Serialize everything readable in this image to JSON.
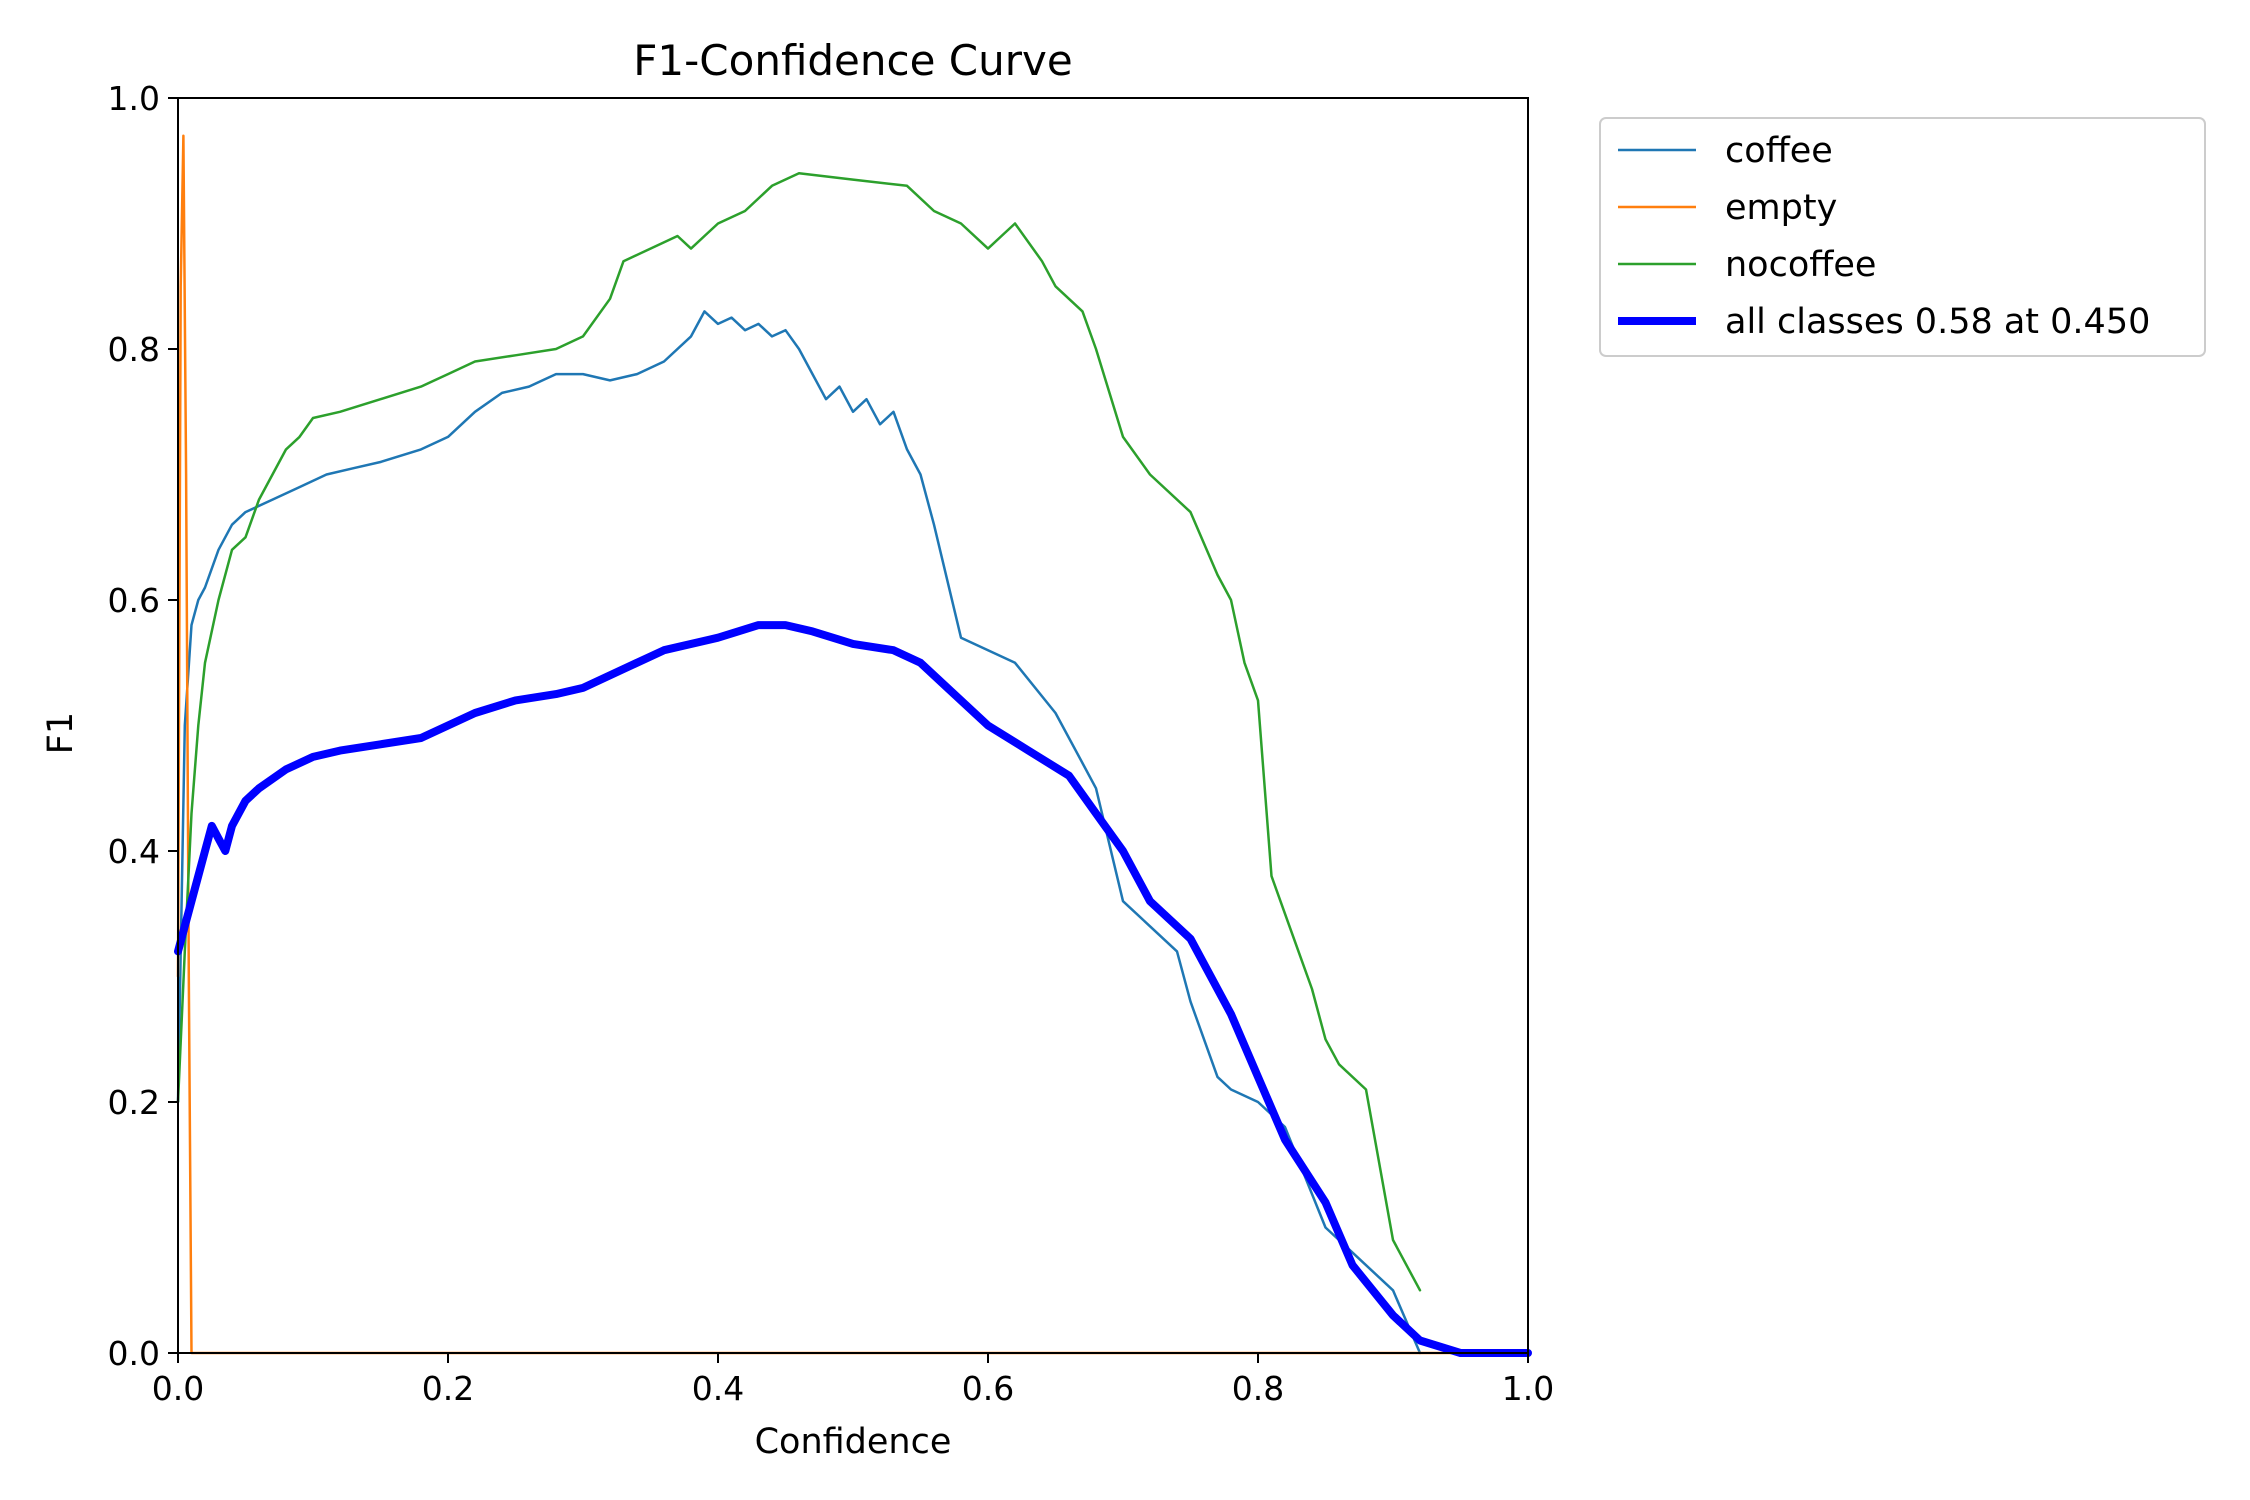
{
  "chart_data": {
    "type": "line",
    "title": "F1-Confidence Curve",
    "xlabel": "Confidence",
    "ylabel": "F1",
    "xlim": [
      0,
      1
    ],
    "ylim": [
      0,
      1
    ],
    "xticks": [
      "0.0",
      "0.2",
      "0.4",
      "0.6",
      "0.8",
      "1.0"
    ],
    "yticks": [
      "0.0",
      "0.2",
      "0.4",
      "0.6",
      "0.8",
      "1.0"
    ],
    "grid": false,
    "legend_position": "outside top-right",
    "series": [
      {
        "name": "coffee",
        "color": "#1f77b4",
        "x": [
          0.0,
          0.005,
          0.01,
          0.015,
          0.02,
          0.03,
          0.04,
          0.05,
          0.07,
          0.09,
          0.11,
          0.13,
          0.15,
          0.18,
          0.2,
          0.22,
          0.24,
          0.26,
          0.28,
          0.3,
          0.32,
          0.34,
          0.36,
          0.38,
          0.39,
          0.4,
          0.41,
          0.42,
          0.43,
          0.44,
          0.45,
          0.46,
          0.47,
          0.48,
          0.49,
          0.5,
          0.51,
          0.52,
          0.53,
          0.54,
          0.55,
          0.56,
          0.58,
          0.6,
          0.62,
          0.65,
          0.67,
          0.68,
          0.7,
          0.72,
          0.74,
          0.75,
          0.77,
          0.78,
          0.8,
          0.82,
          0.85,
          0.87,
          0.9,
          0.92
        ],
        "y": [
          0.2,
          0.5,
          0.58,
          0.6,
          0.61,
          0.64,
          0.66,
          0.67,
          0.68,
          0.69,
          0.7,
          0.705,
          0.71,
          0.72,
          0.73,
          0.75,
          0.765,
          0.77,
          0.78,
          0.78,
          0.775,
          0.78,
          0.79,
          0.81,
          0.83,
          0.82,
          0.825,
          0.815,
          0.82,
          0.81,
          0.815,
          0.8,
          0.78,
          0.76,
          0.77,
          0.75,
          0.76,
          0.74,
          0.75,
          0.72,
          0.7,
          0.66,
          0.57,
          0.56,
          0.55,
          0.51,
          0.47,
          0.45,
          0.36,
          0.34,
          0.32,
          0.28,
          0.22,
          0.21,
          0.2,
          0.18,
          0.1,
          0.08,
          0.05,
          0.0
        ]
      },
      {
        "name": "empty",
        "color": "#ff7f0e",
        "x": [
          0.0,
          0.002,
          0.004,
          0.006,
          0.008,
          0.01,
          0.02,
          0.5,
          1.0
        ],
        "y": [
          0.3,
          0.85,
          0.97,
          0.7,
          0.3,
          0.0,
          0.0,
          0.0,
          0.0
        ]
      },
      {
        "name": "nocoffee",
        "color": "#2ca02c",
        "x": [
          0.0,
          0.005,
          0.01,
          0.015,
          0.02,
          0.03,
          0.04,
          0.05,
          0.06,
          0.07,
          0.08,
          0.09,
          0.1,
          0.12,
          0.15,
          0.18,
          0.2,
          0.22,
          0.25,
          0.28,
          0.3,
          0.32,
          0.33,
          0.35,
          0.37,
          0.38,
          0.39,
          0.4,
          0.42,
          0.44,
          0.46,
          0.5,
          0.54,
          0.56,
          0.58,
          0.6,
          0.61,
          0.62,
          0.64,
          0.65,
          0.67,
          0.68,
          0.7,
          0.72,
          0.75,
          0.77,
          0.78,
          0.79,
          0.8,
          0.81,
          0.82,
          0.83,
          0.84,
          0.85,
          0.86,
          0.88,
          0.9,
          0.91,
          0.92
        ],
        "y": [
          0.2,
          0.32,
          0.43,
          0.5,
          0.55,
          0.6,
          0.64,
          0.65,
          0.68,
          0.7,
          0.72,
          0.73,
          0.745,
          0.75,
          0.76,
          0.77,
          0.78,
          0.79,
          0.795,
          0.8,
          0.81,
          0.84,
          0.87,
          0.88,
          0.89,
          0.88,
          0.89,
          0.9,
          0.91,
          0.93,
          0.94,
          0.935,
          0.93,
          0.91,
          0.9,
          0.88,
          0.89,
          0.9,
          0.87,
          0.85,
          0.83,
          0.8,
          0.73,
          0.7,
          0.67,
          0.62,
          0.6,
          0.55,
          0.52,
          0.38,
          0.35,
          0.32,
          0.29,
          0.25,
          0.23,
          0.21,
          0.09,
          0.07,
          0.05
        ]
      },
      {
        "name": "all classes 0.58 at 0.450",
        "color": "#0000ff",
        "bold": true,
        "x": [
          0.0,
          0.01,
          0.02,
          0.025,
          0.03,
          0.035,
          0.04,
          0.05,
          0.06,
          0.08,
          0.1,
          0.12,
          0.15,
          0.18,
          0.2,
          0.22,
          0.25,
          0.28,
          0.3,
          0.33,
          0.36,
          0.4,
          0.43,
          0.45,
          0.47,
          0.5,
          0.53,
          0.55,
          0.57,
          0.6,
          0.63,
          0.66,
          0.68,
          0.7,
          0.72,
          0.75,
          0.78,
          0.8,
          0.82,
          0.85,
          0.87,
          0.9,
          0.92,
          0.95,
          1.0
        ],
        "y": [
          0.32,
          0.36,
          0.4,
          0.42,
          0.41,
          0.4,
          0.42,
          0.44,
          0.45,
          0.465,
          0.475,
          0.48,
          0.485,
          0.49,
          0.5,
          0.51,
          0.52,
          0.525,
          0.53,
          0.545,
          0.56,
          0.57,
          0.58,
          0.58,
          0.575,
          0.565,
          0.56,
          0.55,
          0.53,
          0.5,
          0.48,
          0.46,
          0.43,
          0.4,
          0.36,
          0.33,
          0.27,
          0.22,
          0.17,
          0.12,
          0.07,
          0.03,
          0.01,
          0.0,
          0.0
        ]
      }
    ]
  }
}
